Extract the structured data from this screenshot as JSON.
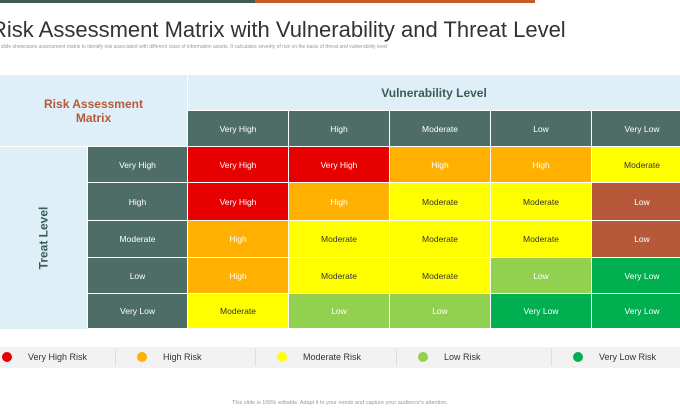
{
  "header": {
    "title": "Risk Assessment Matrix with Vulnerability and Threat Level",
    "subtitle": "This slide showcases assessment matrix to identify risk associated with different class of information assets. It calculates severity of risk on the basis of threat and vulnerability level"
  },
  "matrix": {
    "corner_title": "Risk Assessment Matrix",
    "vulnerability_label": "Vulnerability Level",
    "threat_label": "Treat Level",
    "columns": [
      "Very High",
      "High",
      "Moderate",
      "Low",
      "Very Low"
    ],
    "rows": [
      {
        "label": "Very High",
        "cells": [
          "Very High",
          "Very High",
          "High",
          "High",
          "Moderate"
        ],
        "colors": [
          "#e60000",
          "#e60000",
          "#ffb000",
          "#ffb000",
          "#ffff00"
        ]
      },
      {
        "label": "High",
        "cells": [
          "Very High",
          "High",
          "Moderate",
          "Moderate",
          "Low"
        ],
        "colors": [
          "#e60000",
          "#ffb000",
          "#ffff00",
          "#ffff00",
          "#b5593a"
        ]
      },
      {
        "label": "Moderate",
        "cells": [
          "High",
          "Moderate",
          "Moderate",
          "Moderate",
          "Low"
        ],
        "colors": [
          "#ffb000",
          "#ffff00",
          "#ffff00",
          "#ffff00",
          "#b5593a"
        ]
      },
      {
        "label": "Low",
        "cells": [
          "High",
          "Moderate",
          "Moderate",
          "Low",
          "Very Low"
        ],
        "colors": [
          "#ffb000",
          "#ffff00",
          "#ffff00",
          "#92d050",
          "#00b050"
        ]
      },
      {
        "label": "Very Low",
        "cells": [
          "Moderate",
          "Low",
          "Low",
          "Very Low",
          "Very Low"
        ],
        "colors": [
          "#ffff00",
          "#92d050",
          "#92d050",
          "#00b050",
          "#00b050"
        ]
      }
    ]
  },
  "legend": [
    {
      "name": "Very High Risk",
      "color": "#e60000"
    },
    {
      "name": "High Risk",
      "color": "#ffb000"
    },
    {
      "name": "Moderate Risk",
      "color": "#ffff00"
    },
    {
      "name": "Low Risk",
      "color": "#92d050"
    },
    {
      "name": "Very Low Risk",
      "color": "#00b050"
    }
  ],
  "footer": "This slide is 100% editable. Adapt it to your needs and capture your audience's attention."
}
